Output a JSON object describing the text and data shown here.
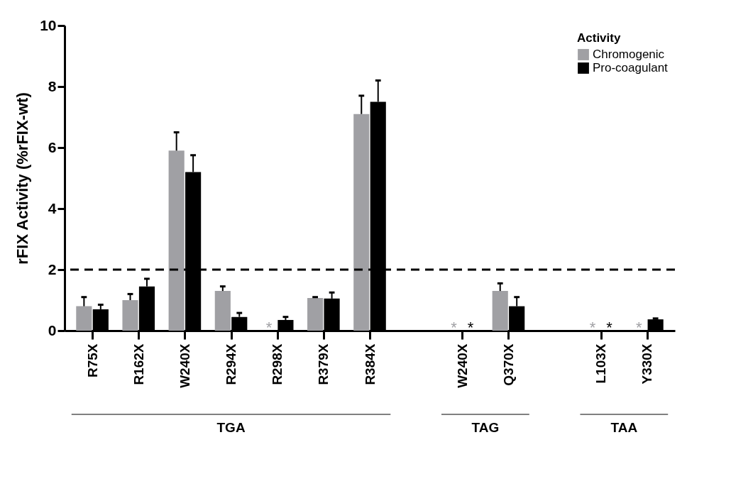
{
  "chart_data": {
    "type": "bar",
    "ylabel": "rFIX Activity (%rFIX-wt)",
    "legend_title": "Activity",
    "legend": "top right",
    "categories": [
      "R75X",
      "R162X",
      "W240X",
      "R294X",
      "R298X",
      "R379X",
      "R384X",
      null,
      "W240X",
      "Q370X",
      null,
      "L103X",
      "Y330X"
    ],
    "series": [
      {
        "name": "Chromogenic",
        "color": "#a0a0a4",
        "values": [
          0.8,
          1.0,
          5.9,
          1.3,
          null,
          1.07,
          7.1,
          null,
          null,
          1.3,
          null,
          null,
          null
        ],
        "errors": [
          [
            0.8,
            1.1
          ],
          [
            1.0,
            1.2
          ],
          [
            5.9,
            6.5
          ],
          [
            1.3,
            1.45
          ],
          null,
          [
            1.07,
            1.1
          ],
          [
            7.1,
            7.7
          ],
          null,
          null,
          [
            1.3,
            1.55
          ],
          null,
          null,
          null
        ]
      },
      {
        "name": "Pro-coagulant",
        "color": "#000000",
        "values": [
          0.7,
          1.45,
          5.2,
          0.45,
          0.35,
          1.05,
          7.5,
          null,
          null,
          0.8,
          null,
          null,
          0.37
        ],
        "errors": [
          [
            0.7,
            0.85
          ],
          [
            1.45,
            1.7
          ],
          [
            5.2,
            5.75
          ],
          [
            0.45,
            0.58
          ],
          [
            0.35,
            0.45
          ],
          [
            1.05,
            1.25
          ],
          [
            7.5,
            8.2
          ],
          null,
          null,
          [
            0.8,
            1.1
          ],
          null,
          null,
          [
            0.37,
            0.4
          ]
        ]
      }
    ],
    "ylim": [
      0,
      10
    ],
    "yticks": [
      0,
      2,
      4,
      6,
      8,
      10
    ],
    "grid": false,
    "ref_lines": [
      {
        "axis": "y",
        "value": 2,
        "color": "#000000",
        "line_style": "dashed"
      }
    ],
    "annotations": [
      "TGA",
      "TAG",
      "TAA",
      "*",
      "*",
      "*",
      "*",
      "*",
      "*"
    ]
  }
}
